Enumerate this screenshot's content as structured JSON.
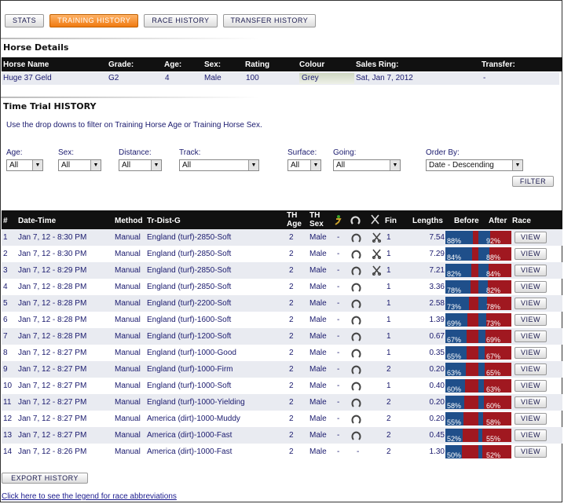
{
  "tabs": [
    "STATS",
    "TRAINING HISTORY",
    "RACE HISTORY",
    "TRANSFER HISTORY"
  ],
  "horse_details": {
    "title": "Horse Details",
    "headers": [
      "Horse Name",
      "Grade:",
      "Age:",
      "Sex:",
      "Rating",
      "Colour",
      "Sales Ring:",
      "Transfer:"
    ],
    "values": [
      "Huge 37 Geld",
      "G2",
      "4",
      "Male",
      "100",
      "Grey",
      "Sat, Jan 7, 2012",
      "-"
    ]
  },
  "time_trial": {
    "title": "Time Trial HISTORY",
    "hint": "Use the drop downs to filter on Training Horse Age or Training Horse Sex."
  },
  "filters": [
    {
      "label": "Age:",
      "value": "All"
    },
    {
      "label": "Sex:",
      "value": "All"
    },
    {
      "label": "Distance:",
      "value": "All"
    },
    {
      "label": "Track:",
      "value": "All"
    },
    {
      "label": "Surface:",
      "value": "All"
    },
    {
      "label": "Going:",
      "value": "All"
    },
    {
      "label": "Order By:",
      "value": "Date - Descending"
    }
  ],
  "filter_button": "FILTER",
  "table_headers": [
    "#",
    "Date-Time",
    "Method",
    "Tr-Dist-G",
    "TH Age",
    "TH Sex",
    "Fin",
    "Lengths",
    "Before",
    "After",
    "Race"
  ],
  "rows": [
    {
      "n": "1",
      "dt": "Jan 7, 12 - 8:30 PM",
      "method": "Manual",
      "tdg": "England (turf)-2850-Soft",
      "age": "2",
      "sex": "Male",
      "c1": "-",
      "shoe": true,
      "sc": true,
      "fin": "1",
      "len": "7.54",
      "before": "88%",
      "after": "92%",
      "bv": 88,
      "av": 92,
      "view": "VIEW"
    },
    {
      "n": "2",
      "dt": "Jan 7, 12 - 8:30 PM",
      "method": "Manual",
      "tdg": "England (turf)-2850-Soft",
      "age": "2",
      "sex": "Male",
      "c1": "-",
      "shoe": true,
      "sc": true,
      "fin": "1",
      "len": "7.29",
      "before": "84%",
      "after": "88%",
      "bv": 84,
      "av": 88,
      "view": "VIEW"
    },
    {
      "n": "3",
      "dt": "Jan 7, 12 - 8:29 PM",
      "method": "Manual",
      "tdg": "England (turf)-2850-Soft",
      "age": "2",
      "sex": "Male",
      "c1": "-",
      "shoe": true,
      "sc": true,
      "fin": "1",
      "len": "7.21",
      "before": "82%",
      "after": "84%",
      "bv": 82,
      "av": 84,
      "view": "VIEW"
    },
    {
      "n": "4",
      "dt": "Jan 7, 12 - 8:28 PM",
      "method": "Manual",
      "tdg": "England (turf)-2850-Soft",
      "age": "2",
      "sex": "Male",
      "c1": "-",
      "shoe": true,
      "sc": false,
      "fin": "1",
      "len": "3.36",
      "before": "78%",
      "after": "82%",
      "bv": 78,
      "av": 82,
      "view": "VIEW"
    },
    {
      "n": "5",
      "dt": "Jan 7, 12 - 8:28 PM",
      "method": "Manual",
      "tdg": "England (turf)-2200-Soft",
      "age": "2",
      "sex": "Male",
      "c1": "-",
      "shoe": true,
      "sc": false,
      "fin": "1",
      "len": "2.58",
      "before": "73%",
      "after": "78%",
      "bv": 73,
      "av": 78,
      "view": "VIEW"
    },
    {
      "n": "6",
      "dt": "Jan 7, 12 - 8:28 PM",
      "method": "Manual",
      "tdg": "England (turf)-1600-Soft",
      "age": "2",
      "sex": "Male",
      "c1": "-",
      "shoe": true,
      "sc": false,
      "fin": "1",
      "len": "1.39",
      "before": "69%",
      "after": "73%",
      "bv": 69,
      "av": 73,
      "view": "VIEW"
    },
    {
      "n": "7",
      "dt": "Jan 7, 12 - 8:28 PM",
      "method": "Manual",
      "tdg": "England (turf)-1200-Soft",
      "age": "2",
      "sex": "Male",
      "c1": "-",
      "shoe": true,
      "sc": false,
      "fin": "1",
      "len": "0.67",
      "before": "67%",
      "after": "69%",
      "bv": 67,
      "av": 69,
      "view": "VIEW"
    },
    {
      "n": "8",
      "dt": "Jan 7, 12 - 8:27 PM",
      "method": "Manual",
      "tdg": "England (turf)-1000-Good",
      "age": "2",
      "sex": "Male",
      "c1": "-",
      "shoe": true,
      "sc": false,
      "fin": "1",
      "len": "0.35",
      "before": "65%",
      "after": "67%",
      "bv": 65,
      "av": 67,
      "view": "VIEW"
    },
    {
      "n": "9",
      "dt": "Jan 7, 12 - 8:27 PM",
      "method": "Manual",
      "tdg": "England (turf)-1000-Firm",
      "age": "2",
      "sex": "Male",
      "c1": "-",
      "shoe": true,
      "sc": false,
      "fin": "2",
      "len": "0.20",
      "before": "63%",
      "after": "65%",
      "bv": 63,
      "av": 65,
      "view": "VIEW"
    },
    {
      "n": "10",
      "dt": "Jan 7, 12 - 8:27 PM",
      "method": "Manual",
      "tdg": "England (turf)-1000-Soft",
      "age": "2",
      "sex": "Male",
      "c1": "-",
      "shoe": true,
      "sc": false,
      "fin": "1",
      "len": "0.40",
      "before": "60%",
      "after": "63%",
      "bv": 60,
      "av": 63,
      "view": "VIEW"
    },
    {
      "n": "11",
      "dt": "Jan 7, 12 - 8:27 PM",
      "method": "Manual",
      "tdg": "England (turf)-1000-Yielding",
      "age": "2",
      "sex": "Male",
      "c1": "-",
      "shoe": true,
      "sc": false,
      "fin": "2",
      "len": "0.20",
      "before": "58%",
      "after": "60%",
      "bv": 58,
      "av": 60,
      "view": "VIEW"
    },
    {
      "n": "12",
      "dt": "Jan 7, 12 - 8:27 PM",
      "method": "Manual",
      "tdg": "America (dirt)-1000-Muddy",
      "age": "2",
      "sex": "Male",
      "c1": "-",
      "shoe": true,
      "sc": false,
      "fin": "2",
      "len": "0.20",
      "before": "55%",
      "after": "58%",
      "bv": 55,
      "av": 58,
      "view": "VIEW"
    },
    {
      "n": "13",
      "dt": "Jan 7, 12 - 8:27 PM",
      "method": "Manual",
      "tdg": "America (dirt)-1000-Fast",
      "age": "2",
      "sex": "Male",
      "c1": "-",
      "shoe": true,
      "sc": false,
      "fin": "2",
      "len": "0.45",
      "before": "52%",
      "after": "55%",
      "bv": 52,
      "av": 55,
      "view": "VIEW"
    },
    {
      "n": "14",
      "dt": "Jan 7, 12 - 8:26 PM",
      "method": "Manual",
      "tdg": "America (dirt)-1000-Fast",
      "age": "2",
      "sex": "Male",
      "c1": "-",
      "shoe": false,
      "c2": "-",
      "sc": false,
      "fin": "2",
      "len": "1.30",
      "before": "50%",
      "after": "52%",
      "bv": 50,
      "av": 52,
      "view": "VIEW"
    }
  ],
  "export_button": "EXPORT HISTORY",
  "legend_link": "Click here to see the legend for race abbreviations",
  "colors": {
    "active_tab": "#f07a10",
    "header_bg": "#111111",
    "row_alt": "#e9ebf1",
    "bar_blue": "#1f4f8a",
    "bar_red": "#a01820"
  }
}
